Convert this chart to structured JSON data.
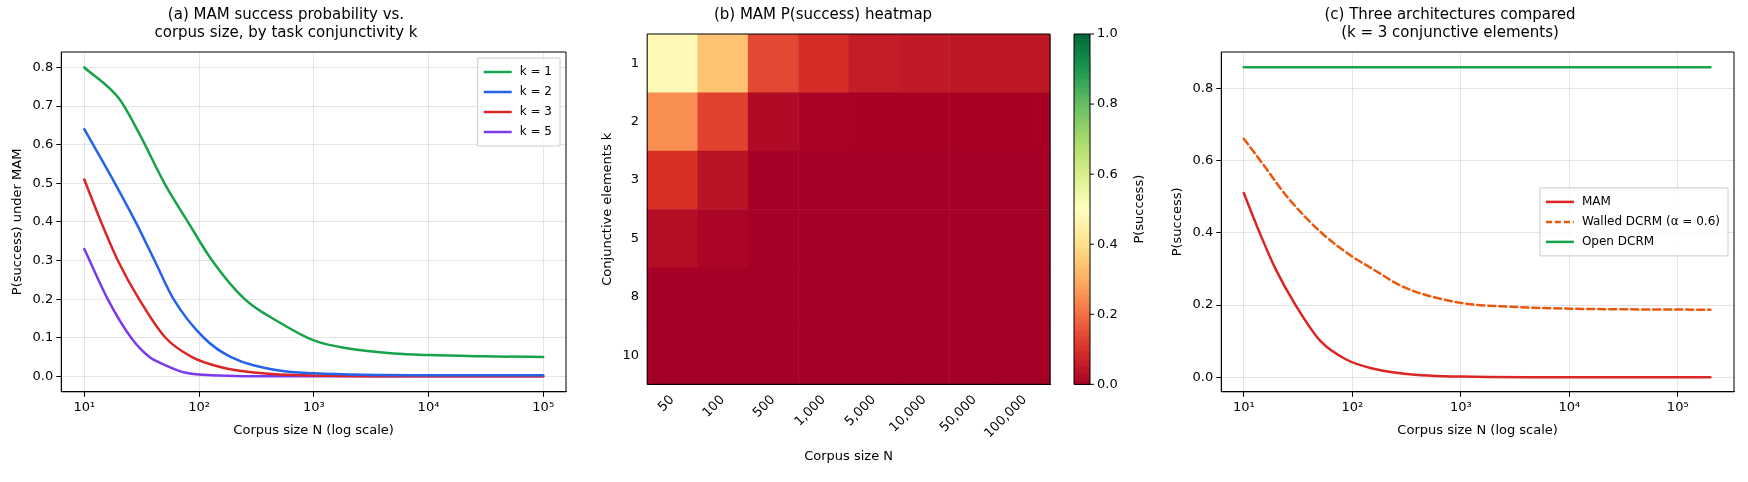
{
  "chart_data": [
    {
      "type": "line",
      "title": "(a) MAM success probability vs.\ncorpus size, by task conjunctivity k",
      "xlabel": "Corpus size N (log scale)",
      "ylabel": "P(success) under MAM",
      "log": "x",
      "grid": true,
      "legend": "top right",
      "line_style": "solid",
      "marker": "none",
      "xlim": [
        6.3,
        158000
      ],
      "xticks": [
        {
          "value": 10,
          "label": "10¹"
        },
        {
          "value": 100,
          "label": "10²"
        },
        {
          "value": 1000,
          "label": "10³"
        },
        {
          "value": 10000,
          "label": "10⁴"
        },
        {
          "value": 100000,
          "label": "10⁵"
        }
      ],
      "ylim": [
        -0.04,
        0.84
      ],
      "yticks": [
        {
          "value": 0,
          "label": "0.0"
        },
        0.1,
        0.2,
        0.3,
        0.4,
        0.5,
        0.6,
        0.7,
        0.8
      ],
      "series": [
        {
          "name": "k = 1",
          "color": "#16a34a",
          "x": [
            10,
            20,
            30,
            50,
            80,
            130,
            250,
            500,
            1000,
            2000,
            5000,
            10000,
            30000,
            100000
          ],
          "values": [
            0.8,
            0.72,
            0.63,
            0.5,
            0.4,
            0.3,
            0.2,
            0.14,
            0.093,
            0.072,
            0.059,
            0.055,
            0.052,
            0.05
          ]
        },
        {
          "name": "k = 2",
          "color": "#2563eb",
          "x": [
            10,
            18.5,
            28,
            41,
            60,
            110,
            190,
            500,
            1000,
            10000,
            100000
          ],
          "values": [
            0.64,
            0.5,
            0.4,
            0.3,
            0.2,
            0.1,
            0.05,
            0.015,
            0.008,
            0.003,
            0.003
          ]
        },
        {
          "name": "k = 3",
          "color": "#dc2626",
          "x": [
            10,
            14,
            19.6,
            30,
            51,
            87,
            150,
            300,
            1000,
            10000,
            100000
          ],
          "values": [
            0.51,
            0.4,
            0.3,
            0.2,
            0.1,
            0.05,
            0.025,
            0.01,
            0.002,
            0,
            0
          ]
        },
        {
          "name": "k = 5",
          "color": "#7c3aed",
          "x": [
            10,
            16,
            25.6,
            37,
            50,
            75,
            150,
            300,
            100000
          ],
          "values": [
            0.33,
            0.2,
            0.1,
            0.05,
            0.03,
            0.01,
            0.002,
            0,
            0
          ]
        }
      ]
    },
    {
      "type": "heatmap",
      "title": "(b) MAM P(success) heatmap",
      "xlabel": "Corpus size N",
      "ylabel": "Conjunctive elements k",
      "clabel": "P(success)",
      "categories": [
        "50",
        "100",
        "500",
        "1,000",
        "5,000",
        "10,000",
        "50,000",
        "100,000"
      ],
      "y_categories": [
        "1",
        "2",
        "3",
        "5",
        "8",
        "10"
      ],
      "cells": [
        [
          0.48,
          0.34,
          0.14,
          0.093,
          0.06,
          0.055,
          0.05,
          0.05
        ],
        [
          0.25,
          0.13,
          0.02,
          0.008,
          0.003,
          0.003,
          0.003,
          0.003
        ],
        [
          0.1,
          0.04,
          0,
          0,
          0,
          0,
          0,
          0
        ],
        [
          0.03,
          0.01,
          0,
          0,
          0,
          0,
          0,
          0
        ],
        [
          0,
          0,
          0,
          0,
          0,
          0,
          0,
          0
        ],
        [
          0,
          0,
          0,
          0,
          0,
          0,
          0,
          0
        ]
      ],
      "clim": [
        0,
        1
      ],
      "cticks": [
        {
          "value": 0,
          "label": "0.0"
        },
        0.2,
        0.4,
        0.6,
        0.8,
        {
          "value": 1,
          "label": "1.0"
        }
      ]
    },
    {
      "type": "line",
      "title": "(c) Three architectures compared\n(k = 3 conjunctive elements)",
      "xlabel": "Corpus size N (log scale)",
      "ylabel": "P(success)",
      "log": "x",
      "grid": true,
      "legend": "right",
      "marker": "none",
      "xlim": [
        6.2,
        330000
      ],
      "xticks": [
        {
          "value": 10,
          "label": "10¹"
        },
        {
          "value": 100,
          "label": "10²"
        },
        {
          "value": 1000,
          "label": "10³"
        },
        {
          "value": 10000,
          "label": "10⁴"
        },
        {
          "value": 100000,
          "label": "10⁵"
        }
      ],
      "ylim": [
        -0.04,
        0.9
      ],
      "yticks": [
        {
          "value": 0,
          "label": "0.0"
        },
        0.2,
        0.4,
        0.6,
        0.8
      ],
      "series": [
        {
          "name": "MAM",
          "color": "#dc2626",
          "line_style": "solid",
          "x": [
            10,
            14,
            19.6,
            30,
            51,
            87,
            150,
            300,
            1000,
            10000,
            200000
          ],
          "values": [
            0.51,
            0.4,
            0.3,
            0.2,
            0.1,
            0.05,
            0.025,
            0.01,
            0.002,
            0,
            0
          ]
        },
        {
          "name": "Walled DCRM (α = 0.6)",
          "color": "#ea580c",
          "line_style": "dashed",
          "x": [
            10,
            15,
            25,
            52,
            100,
            154,
            296,
            1000,
            3000,
            10000,
            200000
          ],
          "values": [
            0.66,
            0.59,
            0.5,
            0.4,
            0.334,
            0.3,
            0.25,
            0.206,
            0.195,
            0.19,
            0.187
          ]
        },
        {
          "name": "Open DCRM",
          "color": "#16a34a",
          "line_style": "solid",
          "x": [
            10,
            200000
          ],
          "values": [
            0.858,
            0.858
          ]
        }
      ]
    }
  ]
}
